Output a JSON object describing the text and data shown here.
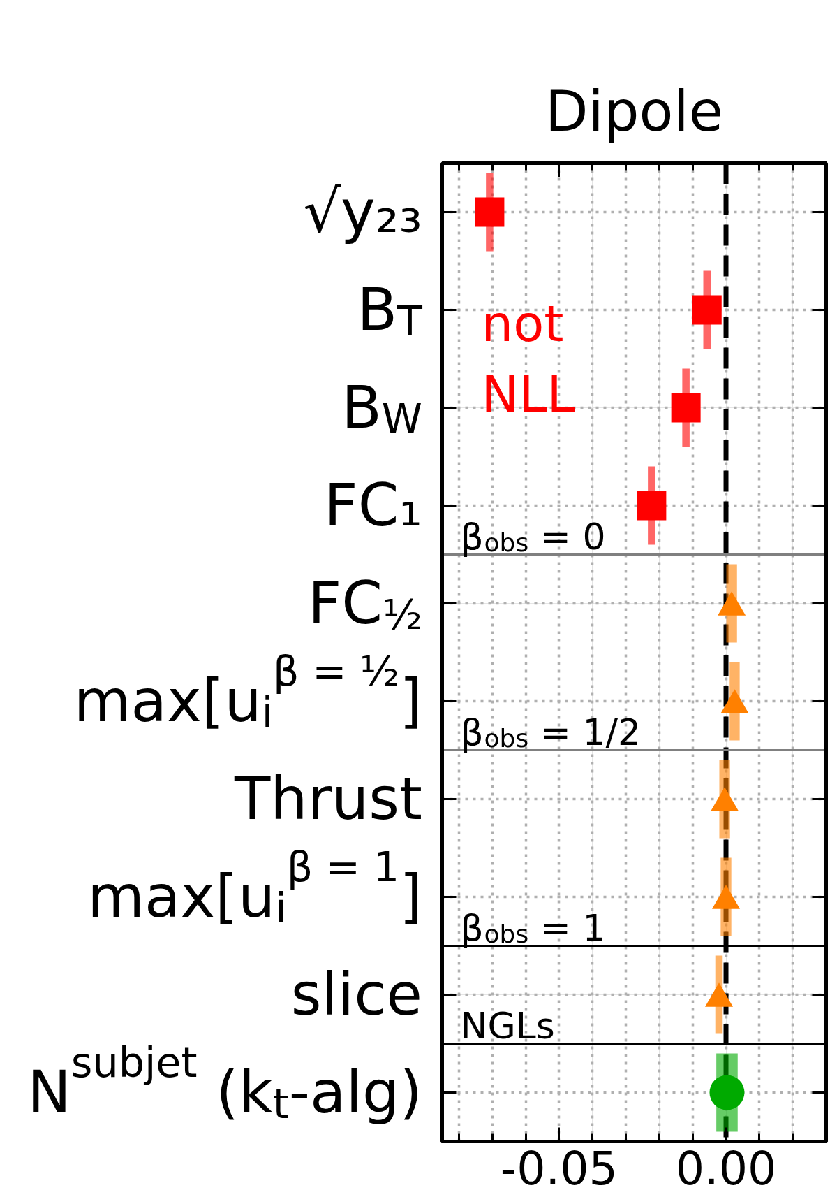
{
  "chart_data": {
    "type": "scatter",
    "title": "Dipole",
    "orientation": "horizontal",
    "categories": [
      "√y₂₃",
      "B$_{T}$",
      "B$_{W}$",
      "FC₁",
      "FC$_{½}$",
      "max[u$_{i}$$^{β = ½}$]",
      "Thrust",
      "max[u$_{i}$$^{β = 1}$]",
      "slice",
      "N$^{subjet}$ (k$_{t}$-alg)"
    ],
    "series": [
      {
        "name": "not NLL",
        "color": "#ff0000",
        "marker": "square",
        "values": [
          -0.0708,
          -0.0057,
          -0.012,
          -0.0223,
          null,
          null,
          null,
          null,
          null,
          null
        ],
        "errors": [
          0.0011,
          0.0011,
          0.0011,
          0.0011,
          null,
          null,
          null,
          null,
          null,
          null
        ]
      },
      {
        "color": "#ff8000",
        "marker": "triangle",
        "values": [
          null,
          null,
          null,
          null,
          0.0017,
          0.0026,
          -0.0004,
          0.0,
          -0.0021,
          null
        ],
        "errors": [
          null,
          null,
          null,
          null,
          0.0016,
          0.0015,
          0.0016,
          0.0016,
          0.0011,
          null
        ]
      },
      {
        "color": "#00aa00",
        "marker": "circle",
        "values": [
          null,
          null,
          null,
          null,
          null,
          null,
          null,
          null,
          null,
          0.0003
        ],
        "errors": [
          null,
          null,
          null,
          null,
          null,
          null,
          null,
          null,
          null,
          0.0032
        ]
      }
    ],
    "xlim": [
      -0.085,
      0.03
    ],
    "xticks": [
      {
        "value": -0.08,
        "label": null
      },
      {
        "value": -0.07,
        "label": null
      },
      {
        "value": -0.06,
        "label": null
      },
      {
        "value": -0.05,
        "label": "-0.05"
      },
      {
        "value": -0.04,
        "label": null
      },
      {
        "value": -0.03,
        "label": null
      },
      {
        "value": -0.02,
        "label": null
      },
      {
        "value": -0.01,
        "label": null
      },
      {
        "value": 0,
        "label": "0.00"
      },
      {
        "value": 0.01,
        "label": null
      },
      {
        "value": 0.02,
        "label": null
      }
    ],
    "grid": true,
    "ref_lines": [
      {
        "axis": "x",
        "value": 0,
        "color": "#000000",
        "line_style": "dashed"
      }
    ],
    "annotations": [
      "β$_{obs}$ = 0",
      "β$_{obs}$ = 1/2",
      "β$_{obs}$ = 1",
      "NGLs"
    ]
  }
}
